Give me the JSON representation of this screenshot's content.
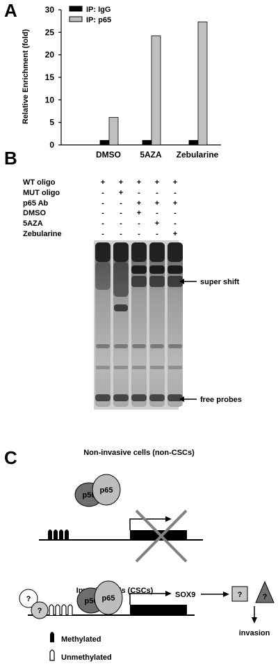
{
  "panel_a": {
    "letter": "A",
    "chart_data": {
      "type": "bar",
      "categories": [
        "DMSO",
        "5AZA",
        "Zebularine"
      ],
      "series": [
        {
          "name": "IP: IgG",
          "values": [
            1.0,
            1.0,
            1.0
          ],
          "color": "#000000"
        },
        {
          "name": "IP: p65",
          "values": [
            6.1,
            24.2,
            27.3
          ],
          "color": "#c0c0c0"
        }
      ],
      "ylabel": "Relative Enrichment (fold)",
      "ylim": [
        0,
        30
      ],
      "yticks": [
        "0",
        "5",
        "10",
        "15",
        "20",
        "25",
        "30"
      ],
      "legend_position": "top-left"
    }
  },
  "panel_b": {
    "letter": "B",
    "row_labels": [
      "WT oligo",
      "MUT oligo",
      "p65 Ab",
      "DMSO",
      "5AZA",
      "Zebularine"
    ],
    "lanes": [
      [
        "+",
        "-",
        "-",
        "-",
        "-",
        "-"
      ],
      [
        "+",
        "+",
        "-",
        "-",
        "-",
        "-"
      ],
      [
        "+",
        "-",
        "+",
        "+",
        "-",
        "-"
      ],
      [
        "+",
        "-",
        "+",
        "-",
        "+",
        "-"
      ],
      [
        "+",
        "-",
        "+",
        "-",
        "-",
        "+"
      ]
    ],
    "annotations": {
      "super_shift": "super shift",
      "free_probes": "free probes"
    }
  },
  "panel_c": {
    "letter": "C",
    "top": {
      "title": "Non-invasive cells (non-CSCs)",
      "p50": "p50",
      "p65": "p65"
    },
    "bottom": {
      "title": "Invasive cells (CSCs)",
      "p50": "p50",
      "p65": "p65",
      "gene": "SOX9",
      "unknown": "?",
      "outcome": "invasion"
    },
    "legend": {
      "methylated": "Methylated",
      "unmethylated": "Unmethylated"
    }
  }
}
